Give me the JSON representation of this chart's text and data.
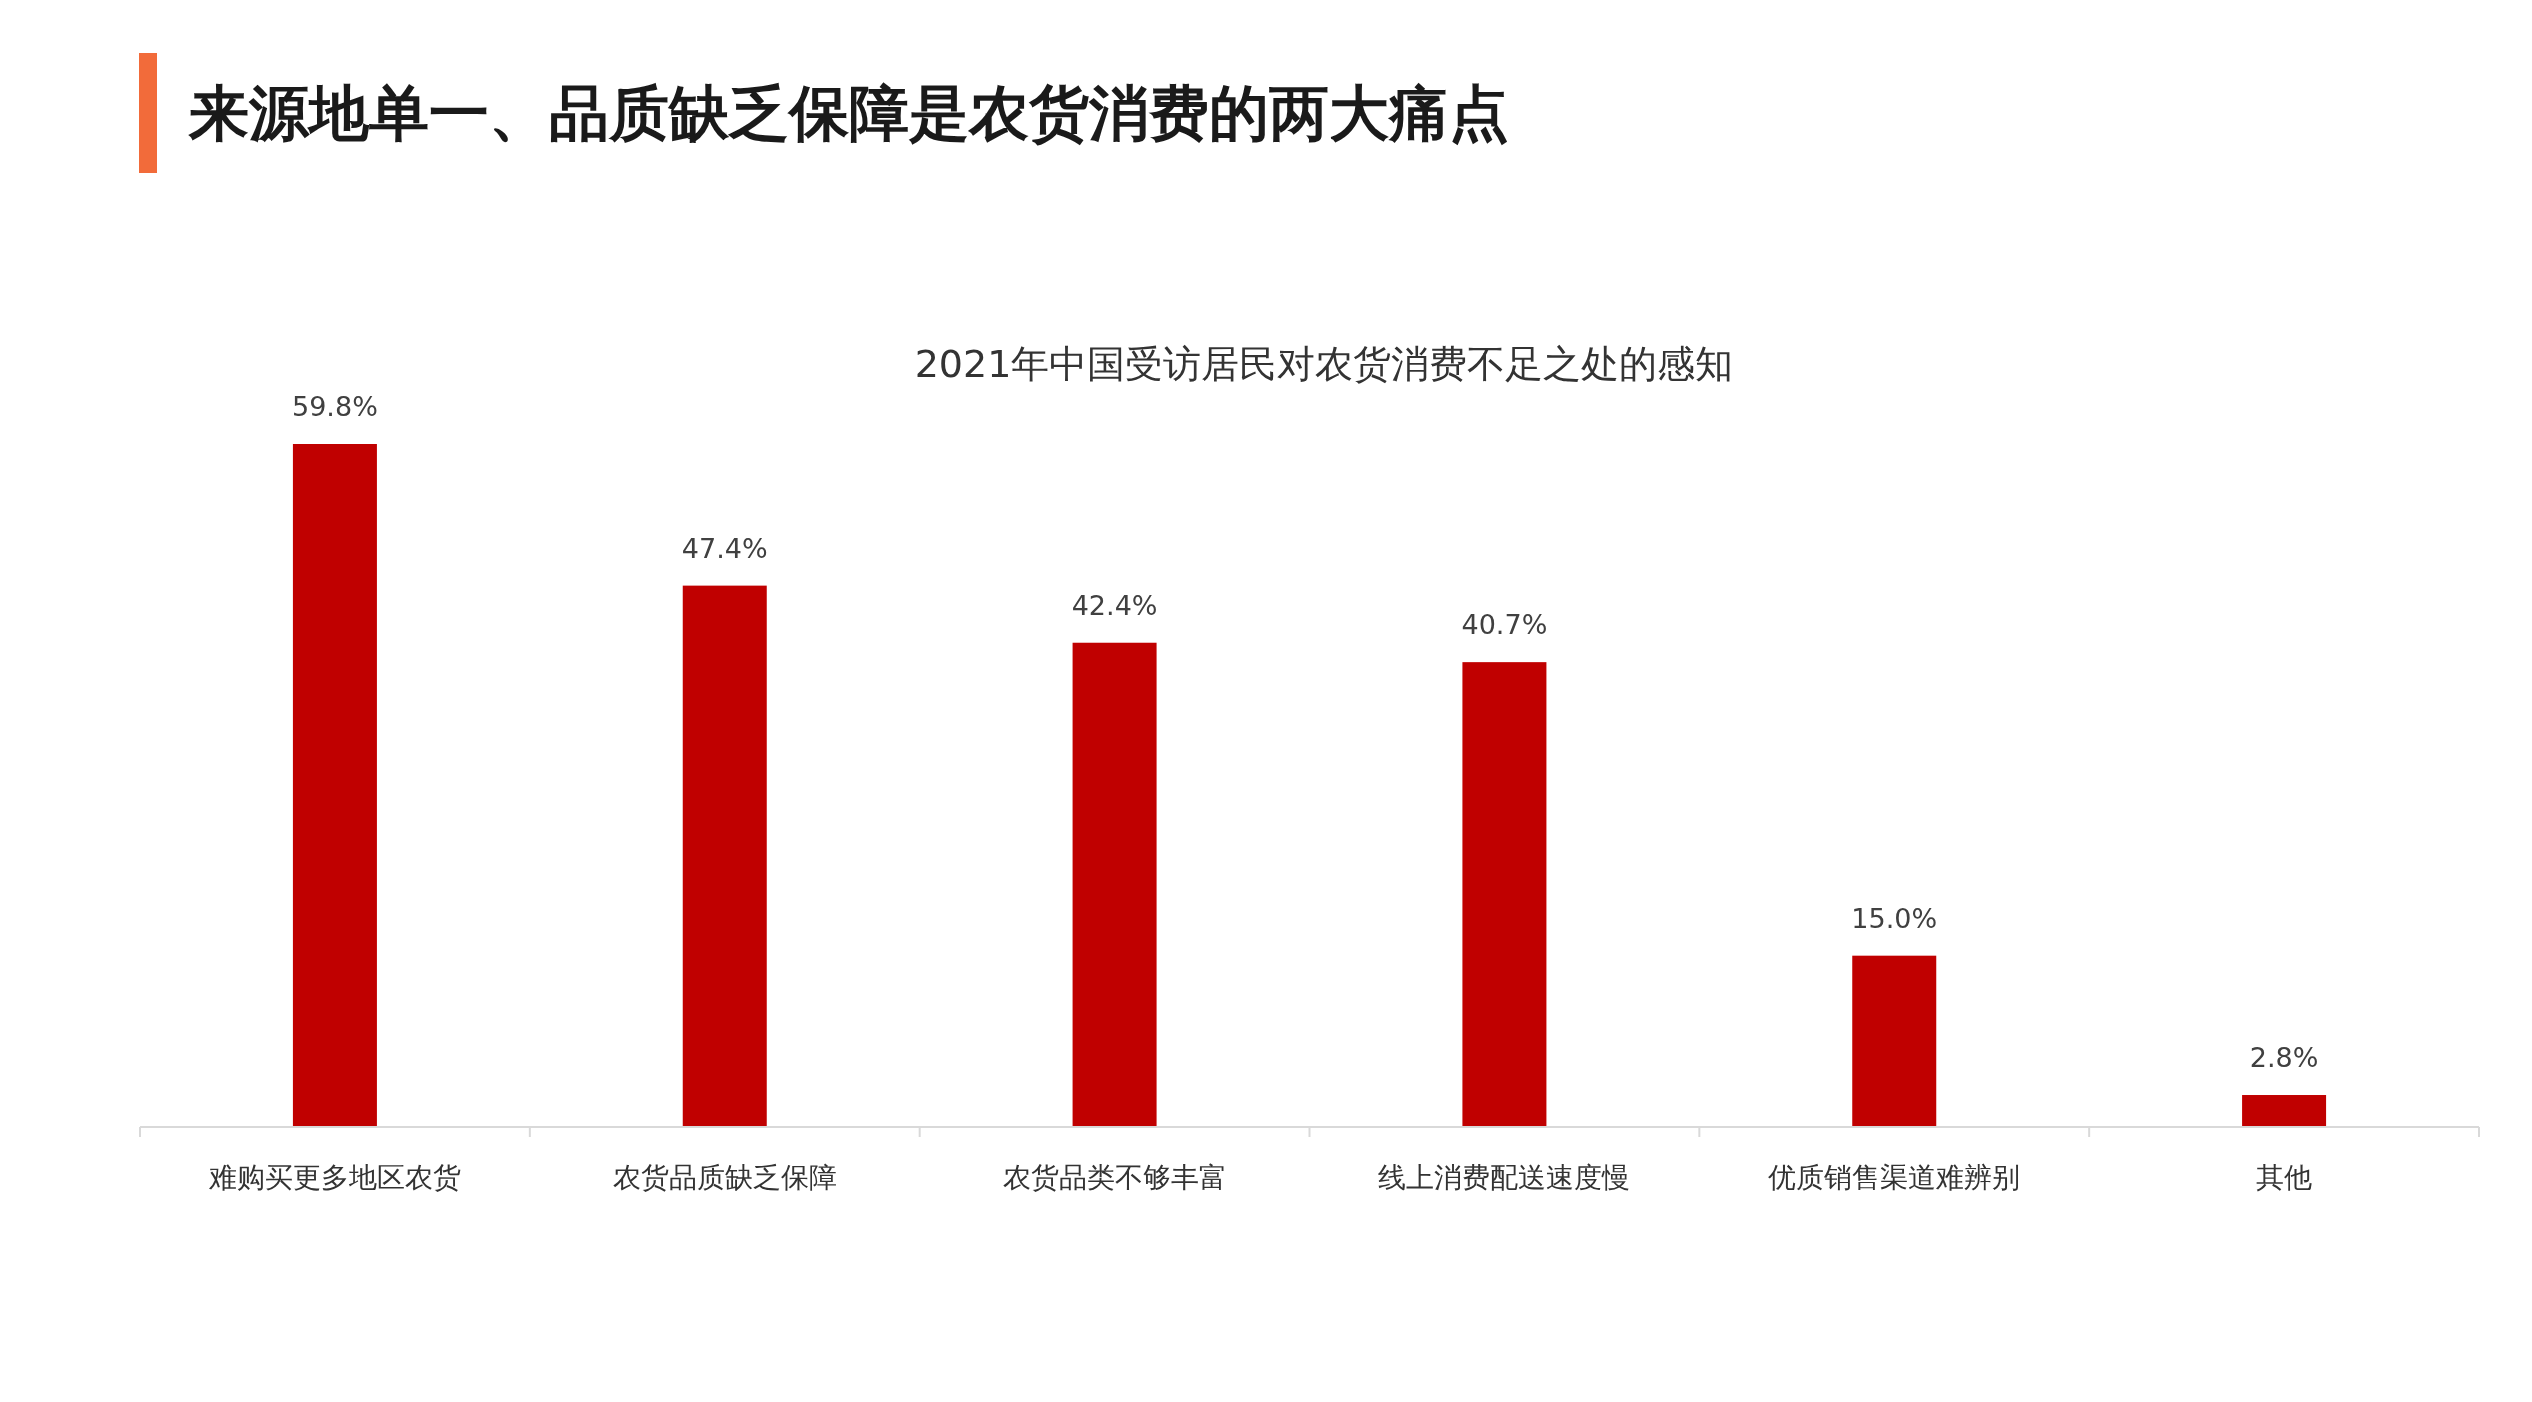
{
  "chart_data": {
    "type": "bar",
    "title": "来源地单一、品质缺乏保障是农货消费的两大痛点",
    "subtitle": "2021年中国受访居民对农货消费不足之处的感知",
    "categories": [
      "难购买更多地区农货",
      "农货品质缺乏保障",
      "农货品类不够丰富",
      "线上消费配送速度慢",
      "优质销售渠道难辨别",
      "其他"
    ],
    "values": [
      59.8,
      47.4,
      42.4,
      40.7,
      15.0,
      2.8
    ],
    "color": "#c00000",
    "value_labels": [
      "59.8%",
      "47.4%",
      "42.4%",
      "40.7%",
      "15.0%",
      "2.8%"
    ]
  }
}
